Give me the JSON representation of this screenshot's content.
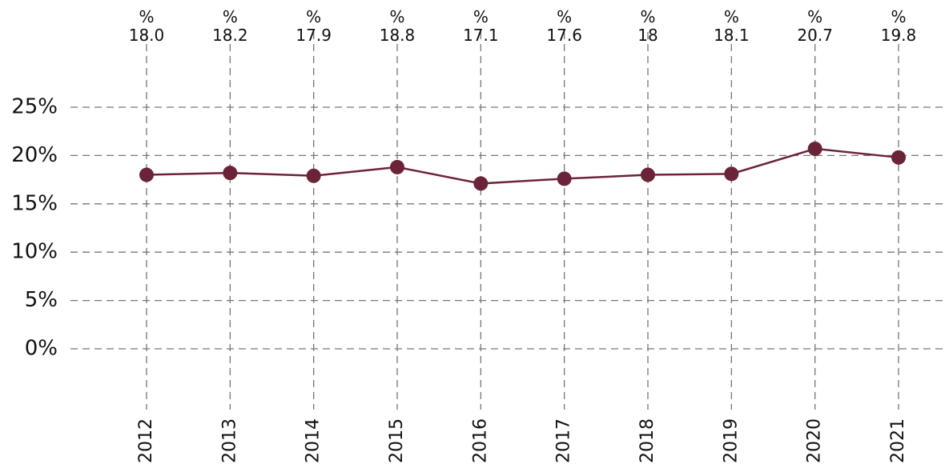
{
  "chart_data": {
    "type": "line",
    "categories": [
      "2012",
      "2013",
      "2014",
      "2015",
      "2016",
      "2017",
      "2018",
      "2019",
      "2020",
      "2021"
    ],
    "series": [
      {
        "color": "#6b2338",
        "values": [
          18.0,
          18.2,
          17.9,
          18.8,
          17.1,
          17.6,
          18,
          18.1,
          20.7,
          19.8
        ],
        "value_labels": [
          "%\n18.0",
          "%\n18.2",
          "%\n17.9",
          "%\n18.8",
          "%\n17.1",
          "%\n17.6",
          "%\n18",
          "%\n18.1",
          "%\n20.7",
          "%\n19.8"
        ]
      }
    ],
    "ylim": [
      0,
      25
    ],
    "yticks": [
      {
        "value": 0,
        "label": "0%"
      },
      {
        "value": 5,
        "label": "5%"
      },
      {
        "value": 10,
        "label": "10%"
      },
      {
        "value": 15,
        "label": "15%"
      },
      {
        "value": 20,
        "label": "20%"
      },
      {
        "value": 25,
        "label": "25%"
      }
    ],
    "grid": true
  }
}
